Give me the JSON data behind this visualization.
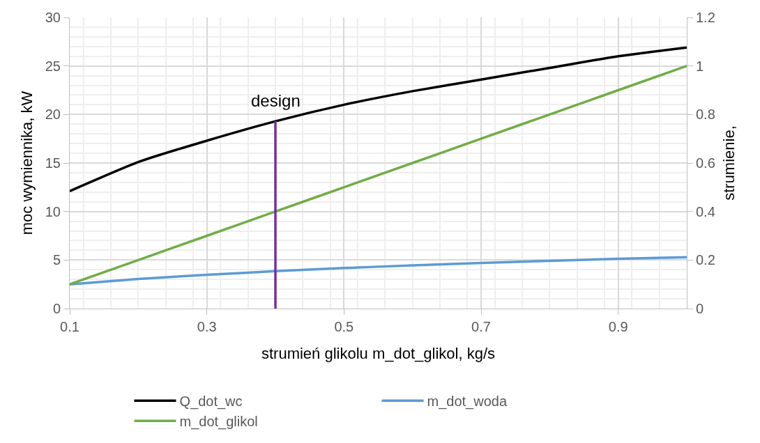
{
  "chart_data": {
    "type": "line",
    "xlabel": "strumień glikolu m_dot_glikol, kg/s",
    "ylabel": "moc wymiennika, kW",
    "y2label": "strumienie,",
    "x": [
      0.1,
      0.2,
      0.3,
      0.4,
      0.5,
      0.6,
      0.7,
      0.8,
      0.9,
      1.0
    ],
    "series": [
      {
        "name": "Q_dot_wc",
        "color": "#000000",
        "values": [
          12.1,
          15.1,
          17.3,
          19.3,
          21.0,
          22.4,
          23.6,
          24.8,
          26.0,
          26.9
        ]
      },
      {
        "name": "m_dot_woda",
        "color": "#5b9bd5",
        "axis": "y2",
        "values": [
          0.1,
          0.122,
          0.139,
          0.154,
          0.167,
          0.178,
          0.188,
          0.197,
          0.205,
          0.212
        ]
      },
      {
        "name": "m_dot_glikol",
        "color": "#70ad47",
        "axis": "y2",
        "values": [
          0.1,
          0.2,
          0.3,
          0.4,
          0.5,
          0.6,
          0.7,
          0.8,
          0.9,
          1.0
        ]
      }
    ],
    "xlim": [
      0.1,
      1.0
    ],
    "xticks": [
      0.1,
      0.3,
      0.5,
      0.7,
      0.9
    ],
    "ylim": [
      0,
      30
    ],
    "yticks": [
      0,
      5,
      10,
      15,
      20,
      25,
      30
    ],
    "y2lim": [
      0,
      1.2
    ],
    "y2ticks": [
      0,
      0.2,
      0.4,
      0.6,
      0.8,
      1,
      1.2
    ],
    "ref_lines": [
      {
        "axis": "x",
        "value": 0.4,
        "label": "design",
        "color": "#7030a0"
      }
    ],
    "grid": true,
    "legend": "bottom",
    "marker": "none",
    "line_style": "solid"
  }
}
